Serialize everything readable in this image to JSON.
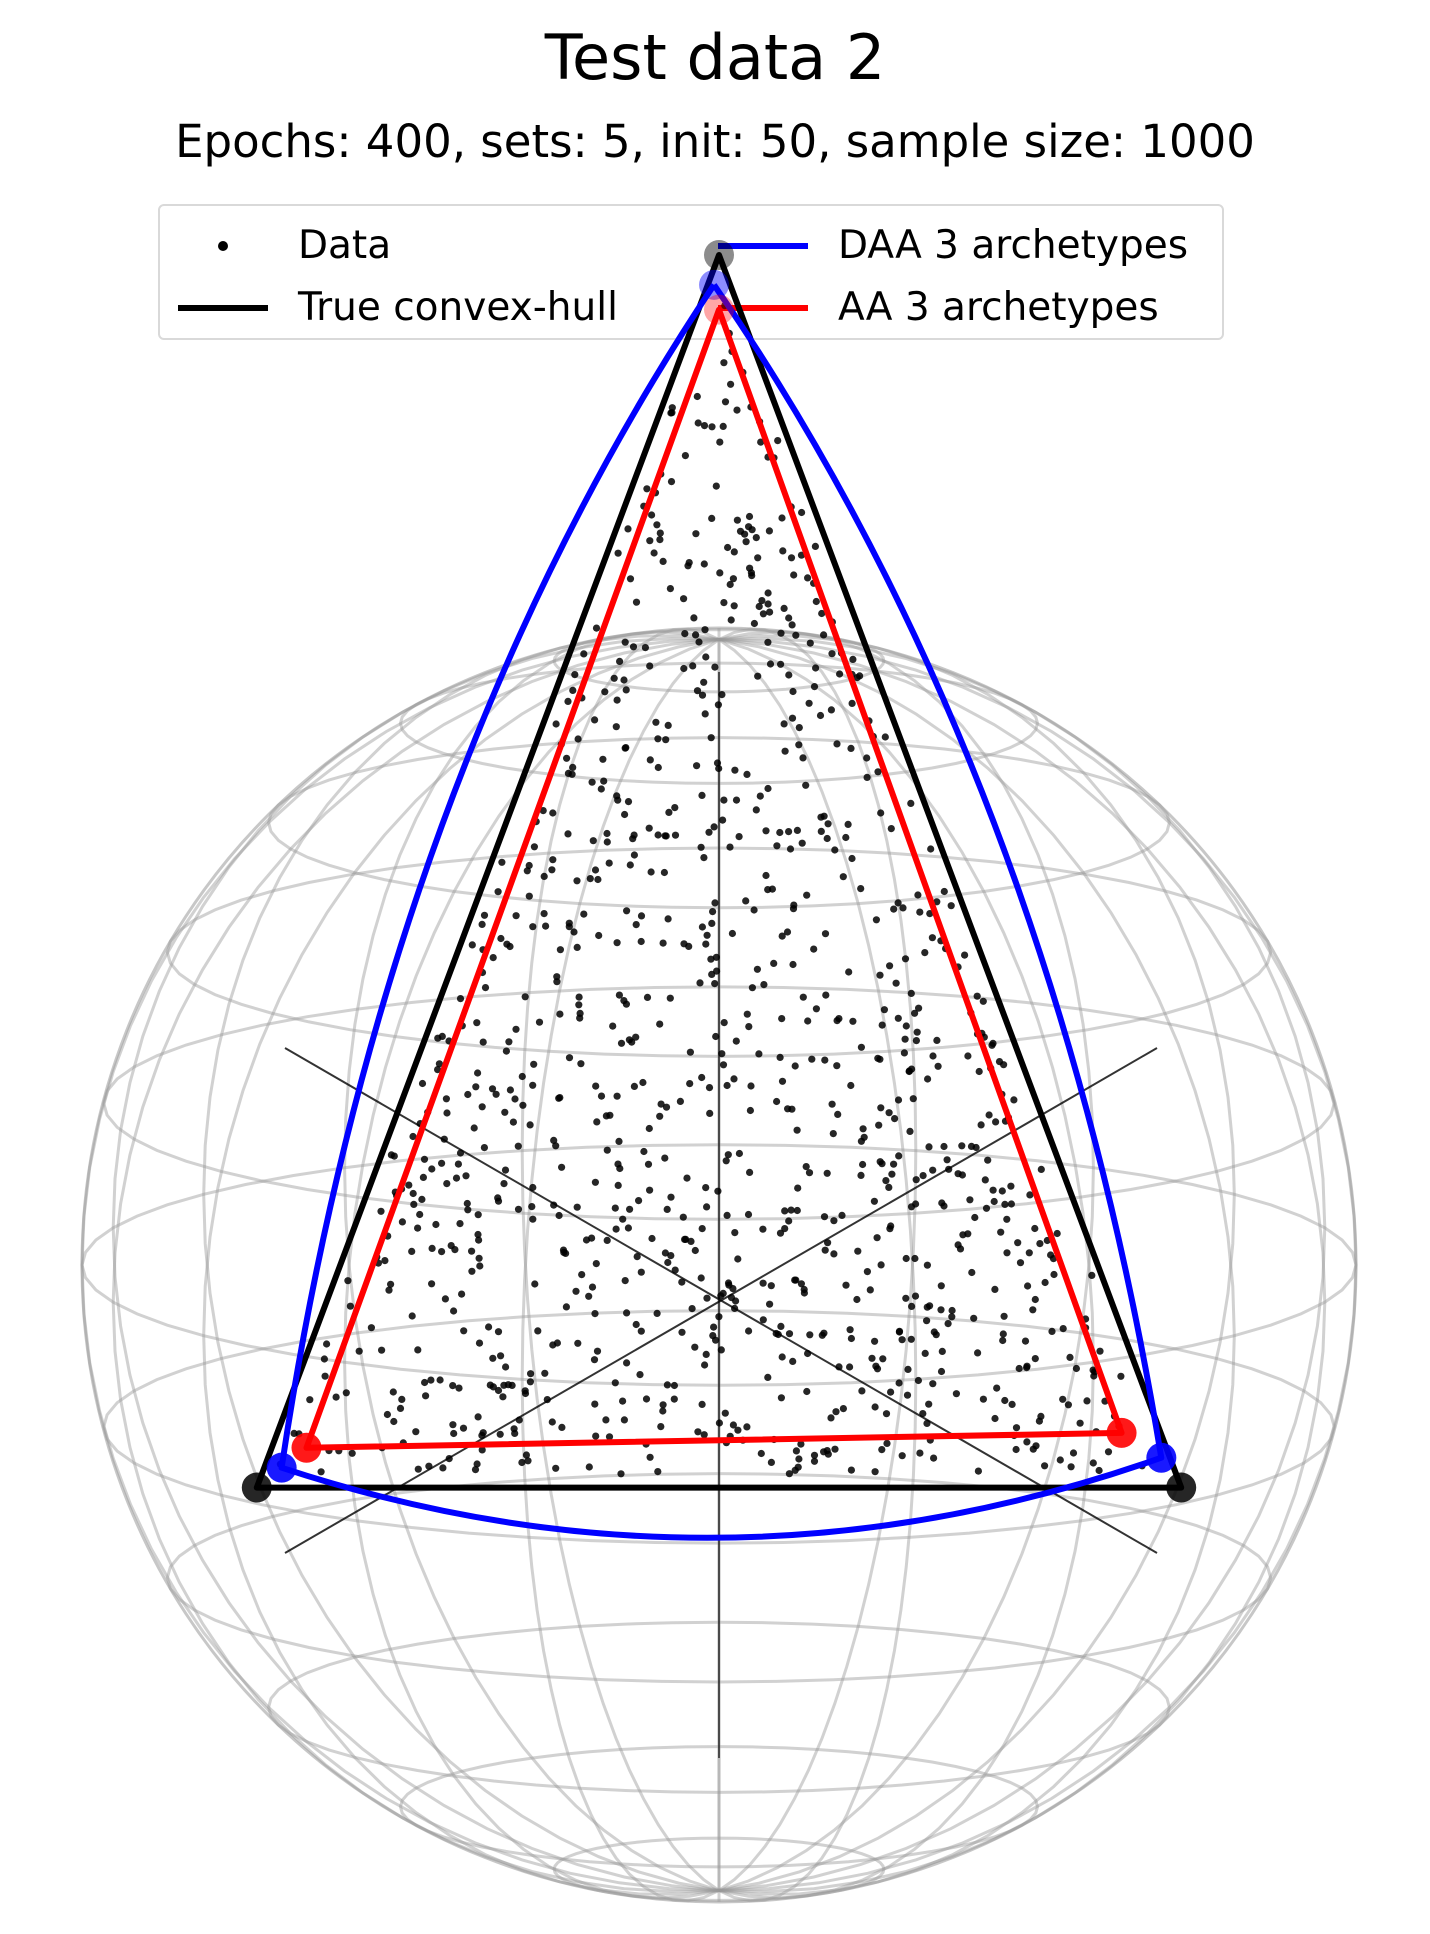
{
  "chart_data": {
    "type": "scatter",
    "title": "Test data 2",
    "subtitle": "Epochs: 400, sets: 5, init: 50, sample size: 1000",
    "legend_placement": "top-center",
    "legend": [
      {
        "label": "Data",
        "marker": "dot",
        "color": "#000000"
      },
      {
        "label": "True convex-hull",
        "marker": "line",
        "color": "#000000"
      },
      {
        "label": "DAA 3 archetypes",
        "marker": "line",
        "color": "#0000ff"
      },
      {
        "label": "AA 3 archetypes",
        "marker": "line",
        "color": "#ff0000"
      }
    ],
    "grid": false,
    "sphere_wireframe": true,
    "axes_visible": false,
    "sample_size": 1000,
    "true_vertices": [
      {
        "name": "top",
        "x": 0.0,
        "y": 1.0
      },
      {
        "name": "left",
        "x": -0.93,
        "y": -1.48
      },
      {
        "name": "right",
        "x": 0.93,
        "y": -1.48
      }
    ],
    "daa_archetypes": [
      {
        "x": -0.01,
        "y": 0.94
      },
      {
        "x": -0.88,
        "y": -1.44
      },
      {
        "x": 0.89,
        "y": -1.42
      }
    ],
    "aa_archetypes": [
      {
        "x": 0.0,
        "y": 0.89
      },
      {
        "x": -0.83,
        "y": -1.4
      },
      {
        "x": 0.81,
        "y": -1.37
      }
    ],
    "colors": {
      "data": "#000000",
      "hull": "#000000",
      "daa": "#0000ff",
      "aa": "#ff0000",
      "wireframe": "#999999"
    }
  }
}
